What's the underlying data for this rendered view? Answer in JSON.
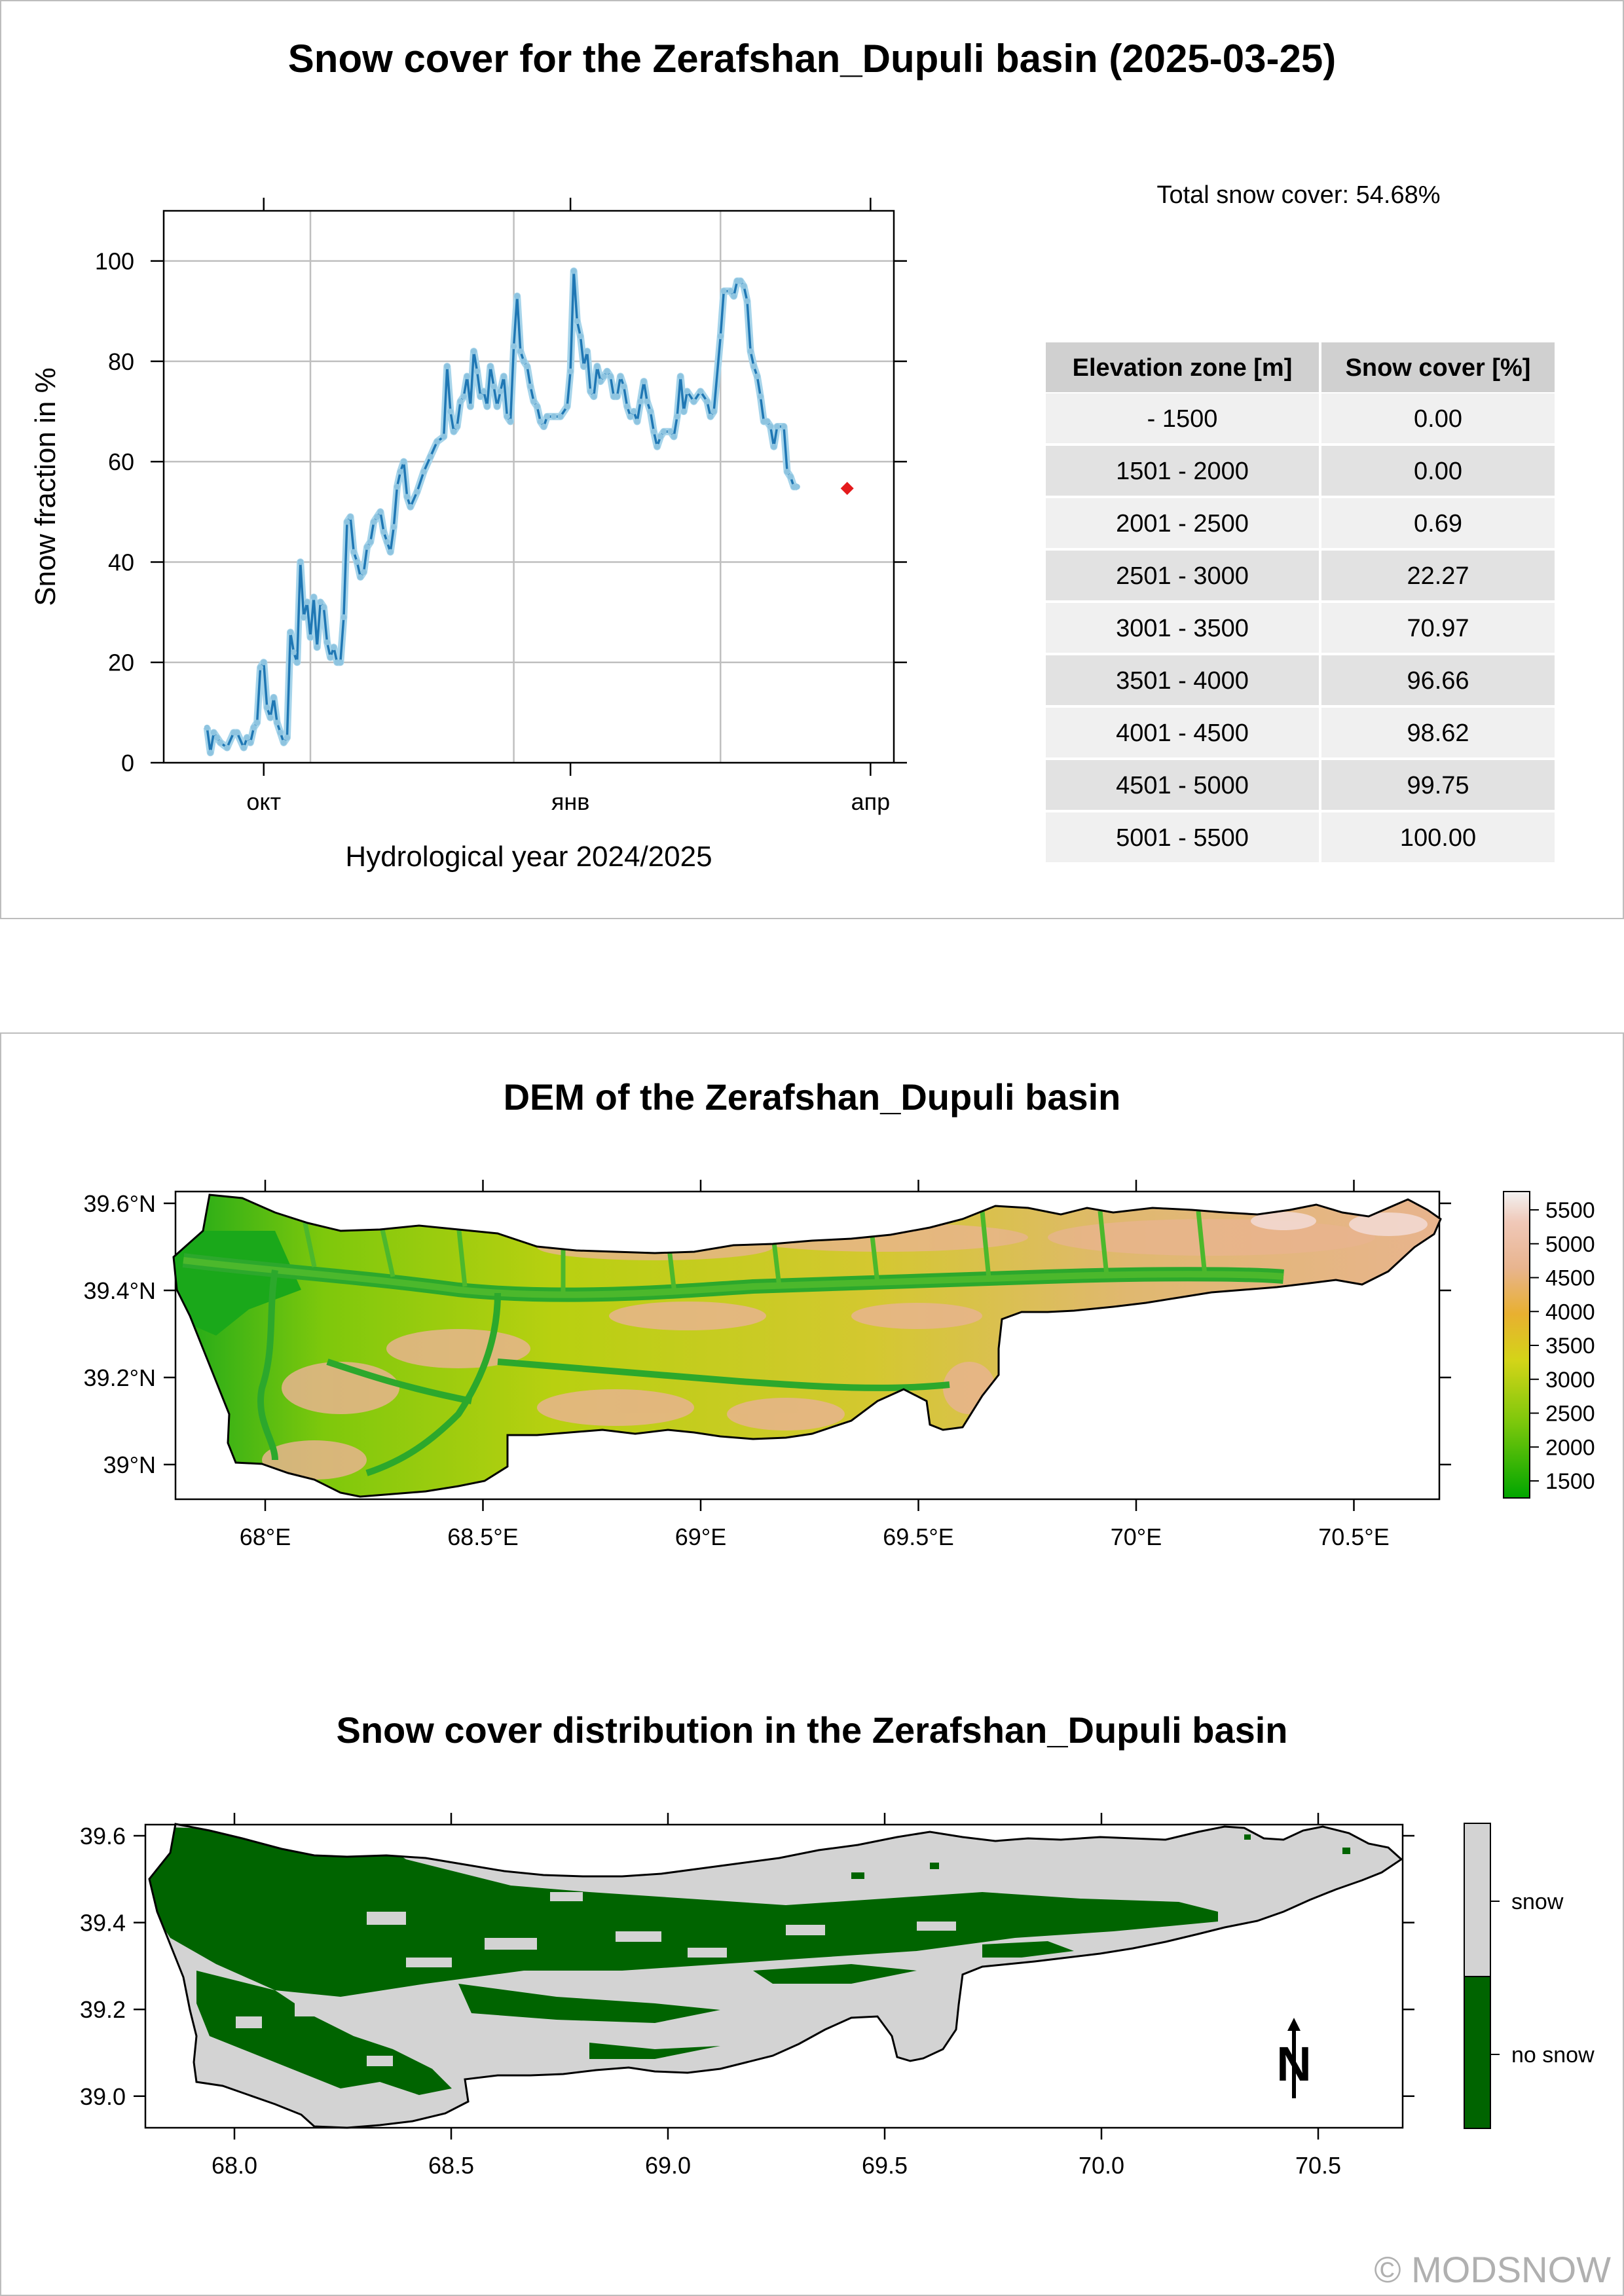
{
  "title": "Snow cover for the Zerafshan_Dupuli basin (2025-03-25)",
  "total_snow_cover": "Total snow cover: 54.68%",
  "elevation_table": {
    "headers": [
      "Elevation zone [m]",
      "Snow cover [%]"
    ],
    "rows": [
      [
        "- 1500",
        "0.00"
      ],
      [
        "1501 - 2000",
        "0.00"
      ],
      [
        "2001 - 2500",
        "0.69"
      ],
      [
        "2501 - 3000",
        "22.27"
      ],
      [
        "3001 - 3500",
        "70.97"
      ],
      [
        "3501 - 4000",
        "96.66"
      ],
      [
        "4001 - 4500",
        "98.62"
      ],
      [
        "4501 - 5000",
        "99.75"
      ],
      [
        "5001 - 5500",
        "100.00"
      ]
    ]
  },
  "dem_title": "DEM of the Zerafshan_Dupuli basin",
  "dem_map": {
    "x_ticks": [
      "68°E",
      "68.5°E",
      "69°E",
      "69.5°E",
      "70°E",
      "70.5°E"
    ],
    "y_ticks": [
      "39.6°N",
      "39.4°N",
      "39.2°N",
      "39°N"
    ],
    "legend_ticks": [
      "5500",
      "5000",
      "4500",
      "4000",
      "3500",
      "3000",
      "2500",
      "2000",
      "1500"
    ],
    "colors": {
      "low": "#1aa81a",
      "mid": "#d4d418",
      "high": "#e8b48e",
      "peak": "#f2f2f2"
    }
  },
  "snow_title": "Snow cover distribution in the Zerafshan_Dupuli basin",
  "snow_map": {
    "x_ticks": [
      "68.0",
      "68.5",
      "69.0",
      "69.5",
      "70.0",
      "70.5"
    ],
    "y_ticks": [
      "39.6",
      "39.4",
      "39.2",
      "39.0"
    ],
    "legend": [
      "snow",
      "no snow"
    ],
    "colors": {
      "snow": "#d3d3d3",
      "no_snow": "#006400"
    },
    "north_arrow": "N"
  },
  "copyright": "© MODSNOW",
  "chart_data": {
    "type": "line",
    "title": "",
    "xlabel": "Hydrological year 2024/2025",
    "ylabel": "Snow fraction in %",
    "ylim": [
      0,
      110
    ],
    "yticks": [
      0,
      20,
      40,
      60,
      80,
      100
    ],
    "xlim": [
      "2024-09-01",
      "2025-04-08"
    ],
    "xticks": [
      {
        "date": "2024-10-01",
        "label": "окт"
      },
      {
        "date": "2025-01-01",
        "label": "янв"
      },
      {
        "date": "2025-04-01",
        "label": "апр"
      }
    ],
    "grid_dates": [
      "2024-10-15",
      "2024-12-15",
      "2025-02-15"
    ],
    "grid": true,
    "series": [
      {
        "color": "#1f77b4",
        "points": [
          [
            "2024-09-14",
            7
          ],
          [
            "2024-09-15",
            2
          ],
          [
            "2024-09-16",
            6
          ],
          [
            "2024-09-17",
            5
          ],
          [
            "2024-09-18",
            4
          ],
          [
            "2024-09-20",
            3
          ],
          [
            "2024-09-22",
            6
          ],
          [
            "2024-09-23",
            6
          ],
          [
            "2024-09-25",
            3
          ],
          [
            "2024-09-26",
            5
          ],
          [
            "2024-09-27",
            4
          ],
          [
            "2024-09-28",
            7
          ],
          [
            "2024-09-29",
            8
          ],
          [
            "2024-09-30",
            19
          ],
          [
            "2024-10-01",
            20
          ],
          [
            "2024-10-02",
            11
          ],
          [
            "2024-10-03",
            9
          ],
          [
            "2024-10-04",
            13
          ],
          [
            "2024-10-05",
            8
          ],
          [
            "2024-10-06",
            6
          ],
          [
            "2024-10-07",
            4
          ],
          [
            "2024-10-08",
            5
          ],
          [
            "2024-10-09",
            26
          ],
          [
            "2024-10-10",
            22
          ],
          [
            "2024-10-11",
            20
          ],
          [
            "2024-10-12",
            40
          ],
          [
            "2024-10-13",
            29
          ],
          [
            "2024-10-14",
            32
          ],
          [
            "2024-10-15",
            25
          ],
          [
            "2024-10-16",
            33
          ],
          [
            "2024-10-17",
            23
          ],
          [
            "2024-10-18",
            32
          ],
          [
            "2024-10-19",
            31
          ],
          [
            "2024-10-20",
            24
          ],
          [
            "2024-10-21",
            21
          ],
          [
            "2024-10-22",
            23
          ],
          [
            "2024-10-23",
            20
          ],
          [
            "2024-10-24",
            20
          ],
          [
            "2024-10-25",
            29
          ],
          [
            "2024-10-26",
            48
          ],
          [
            "2024-10-27",
            49
          ],
          [
            "2024-10-28",
            42
          ],
          [
            "2024-10-29",
            40
          ],
          [
            "2024-10-30",
            37
          ],
          [
            "2024-10-31",
            38
          ],
          [
            "2024-11-01",
            43
          ],
          [
            "2024-11-02",
            44
          ],
          [
            "2024-11-03",
            48
          ],
          [
            "2024-11-04",
            49
          ],
          [
            "2024-11-05",
            50
          ],
          [
            "2024-11-06",
            46
          ],
          [
            "2024-11-07",
            44
          ],
          [
            "2024-11-08",
            42
          ],
          [
            "2024-11-09",
            47
          ],
          [
            "2024-11-10",
            55
          ],
          [
            "2024-11-11",
            58
          ],
          [
            "2024-11-12",
            60
          ],
          [
            "2024-11-13",
            53
          ],
          [
            "2024-11-14",
            51
          ],
          [
            "2024-11-16",
            54
          ],
          [
            "2024-11-18",
            58
          ],
          [
            "2024-11-20",
            61
          ],
          [
            "2024-11-22",
            64
          ],
          [
            "2024-11-24",
            65
          ],
          [
            "2024-11-25",
            79
          ],
          [
            "2024-11-26",
            70
          ],
          [
            "2024-11-27",
            66
          ],
          [
            "2024-11-28",
            67
          ],
          [
            "2024-11-29",
            72
          ],
          [
            "2024-11-30",
            73
          ],
          [
            "2024-12-01",
            77
          ],
          [
            "2024-12-02",
            71
          ],
          [
            "2024-12-03",
            82
          ],
          [
            "2024-12-04",
            78
          ],
          [
            "2024-12-05",
            73
          ],
          [
            "2024-12-06",
            74
          ],
          [
            "2024-12-07",
            71
          ],
          [
            "2024-12-08",
            79
          ],
          [
            "2024-12-09",
            75
          ],
          [
            "2024-12-10",
            71
          ],
          [
            "2024-12-11",
            74
          ],
          [
            "2024-12-12",
            77
          ],
          [
            "2024-12-13",
            69
          ],
          [
            "2024-12-14",
            68
          ],
          [
            "2024-12-15",
            83
          ],
          [
            "2024-12-16",
            93
          ],
          [
            "2024-12-17",
            82
          ],
          [
            "2024-12-18",
            80
          ],
          [
            "2024-12-19",
            79
          ],
          [
            "2024-12-20",
            75
          ],
          [
            "2024-12-21",
            72
          ],
          [
            "2024-12-22",
            71
          ],
          [
            "2024-12-23",
            68
          ],
          [
            "2024-12-24",
            67
          ],
          [
            "2024-12-25",
            69
          ],
          [
            "2024-12-27",
            69
          ],
          [
            "2024-12-29",
            69
          ],
          [
            "2024-12-31",
            71
          ],
          [
            "2025-01-01",
            78
          ],
          [
            "2025-01-02",
            98
          ],
          [
            "2025-01-03",
            88
          ],
          [
            "2025-01-04",
            85
          ],
          [
            "2025-01-05",
            79
          ],
          [
            "2025-01-06",
            82
          ],
          [
            "2025-01-07",
            74
          ],
          [
            "2025-01-08",
            73
          ],
          [
            "2025-01-09",
            79
          ],
          [
            "2025-01-10",
            76
          ],
          [
            "2025-01-11",
            77
          ],
          [
            "2025-01-12",
            78
          ],
          [
            "2025-01-13",
            77
          ],
          [
            "2025-01-14",
            73
          ],
          [
            "2025-01-15",
            73
          ],
          [
            "2025-01-16",
            77
          ],
          [
            "2025-01-17",
            75
          ],
          [
            "2025-01-18",
            71
          ],
          [
            "2025-01-19",
            69
          ],
          [
            "2025-01-20",
            70
          ],
          [
            "2025-01-21",
            68
          ],
          [
            "2025-01-22",
            72
          ],
          [
            "2025-01-23",
            76
          ],
          [
            "2025-01-24",
            72
          ],
          [
            "2025-01-25",
            70
          ],
          [
            "2025-01-26",
            66
          ],
          [
            "2025-01-27",
            63
          ],
          [
            "2025-01-28",
            65
          ],
          [
            "2025-01-29",
            66
          ],
          [
            "2025-01-31",
            66
          ],
          [
            "2025-02-01",
            65
          ],
          [
            "2025-02-02",
            69
          ],
          [
            "2025-02-03",
            77
          ],
          [
            "2025-02-04",
            70
          ],
          [
            "2025-02-05",
            74
          ],
          [
            "2025-02-07",
            72
          ],
          [
            "2025-02-09",
            74
          ],
          [
            "2025-02-11",
            72
          ],
          [
            "2025-02-12",
            69
          ],
          [
            "2025-02-13",
            70
          ],
          [
            "2025-02-15",
            85
          ],
          [
            "2025-02-16",
            94
          ],
          [
            "2025-02-18",
            94
          ],
          [
            "2025-02-19",
            93
          ],
          [
            "2025-02-20",
            96
          ],
          [
            "2025-02-21",
            96
          ],
          [
            "2025-02-22",
            95
          ],
          [
            "2025-02-23",
            92
          ],
          [
            "2025-02-24",
            82
          ],
          [
            "2025-02-25",
            79
          ],
          [
            "2025-02-26",
            77
          ],
          [
            "2025-02-27",
            73
          ],
          [
            "2025-02-28",
            68
          ],
          [
            "2025-03-01",
            68
          ],
          [
            "2025-03-02",
            67
          ],
          [
            "2025-03-03",
            63
          ],
          [
            "2025-03-04",
            67
          ],
          [
            "2025-03-06",
            67
          ],
          [
            "2025-03-07",
            58
          ],
          [
            "2025-03-08",
            57
          ],
          [
            "2025-03-09",
            55
          ],
          [
            "2025-03-10",
            55
          ]
        ]
      }
    ],
    "current": {
      "date": "2025-03-25",
      "value": 54.68,
      "color": "#e41a1c"
    }
  }
}
